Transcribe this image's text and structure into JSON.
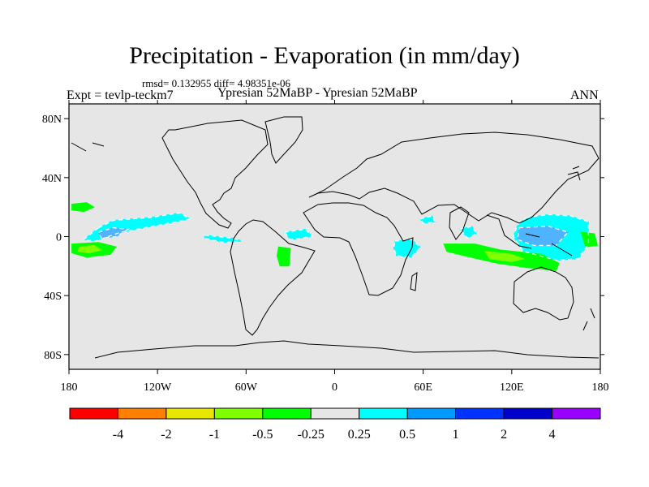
{
  "title": "Precipitation - Evaporation (in mm/day)",
  "stats": "rmsd= 0.132955 diff= 4.98351e-06",
  "expt_label": "Expt = tevlp-teckm7",
  "comparison_label": "Ypresian  52MaBP - Ypresian  52MaBP",
  "season": "ANN",
  "map": {
    "projection": "cylindrical-equidistant",
    "lon_range": [
      -180,
      180
    ],
    "lat_range": [
      -90,
      90
    ],
    "ocean_color": "#e6e6e6",
    "coastline_color": "#000000",
    "x_ticks": [
      {
        "value": -180,
        "label": "180"
      },
      {
        "value": -120,
        "label": "120W"
      },
      {
        "value": -60,
        "label": "60W"
      },
      {
        "value": 0,
        "label": "0"
      },
      {
        "value": 60,
        "label": "60E"
      },
      {
        "value": 120,
        "label": "120E"
      },
      {
        "value": 180,
        "label": "180"
      }
    ],
    "y_ticks": [
      {
        "value": 80,
        "label": "80N"
      },
      {
        "value": 40,
        "label": "40N"
      },
      {
        "value": 0,
        "label": "0"
      },
      {
        "value": -40,
        "label": "40S"
      },
      {
        "value": -80,
        "label": "80S"
      }
    ]
  },
  "colorbar": {
    "boundaries": [
      "-4",
      "-2",
      "-1",
      "-0.5",
      "-0.25",
      "0.25",
      "0.5",
      "1",
      "2",
      "4"
    ],
    "colors": [
      "#ff0000",
      "#ff8000",
      "#e6e600",
      "#80ff00",
      "#00ff00",
      "#e6e6e6",
      "#00ffff",
      "#0099ff",
      "#0033ff",
      "#0000cc",
      "#9900ff"
    ]
  },
  "anomaly_regions": [
    {
      "name": "central-pacific-moist-band",
      "class": "0.25 to 0.5",
      "color": "#00ffff",
      "polygon": [
        [
          -160,
          6
        ],
        [
          -150,
          11
        ],
        [
          -125,
          13
        ],
        [
          -105,
          16
        ],
        [
          -98,
          12
        ],
        [
          -118,
          8
        ],
        [
          -145,
          3
        ],
        [
          -162,
          -3
        ],
        [
          -170,
          -2
        ]
      ]
    },
    {
      "name": "central-pacific-core",
      "class": "0.5 to 1",
      "color": "#4fb3ff",
      "polygon": [
        [
          -160,
          3
        ],
        [
          -150,
          6
        ],
        [
          -140,
          5
        ],
        [
          -148,
          0
        ],
        [
          -158,
          -1
        ]
      ]
    },
    {
      "name": "equatorial-pacific-east",
      "class": "0.25 to 0.5",
      "color": "#00ffff",
      "polygon": [
        [
          -88,
          1
        ],
        [
          -70,
          -1
        ],
        [
          -62,
          -3
        ],
        [
          -75,
          -4
        ],
        [
          -88,
          -1
        ]
      ]
    },
    {
      "name": "west-pacific-moist-region",
      "class": "0.25 to 0.5",
      "color": "#00ffff",
      "polygon": [
        [
          130,
          13
        ],
        [
          145,
          15
        ],
        [
          160,
          14
        ],
        [
          172,
          10
        ],
        [
          172,
          -5
        ],
        [
          165,
          -15
        ],
        [
          150,
          -16
        ],
        [
          128,
          -10
        ],
        [
          121,
          0
        ],
        [
          124,
          8
        ]
      ]
    },
    {
      "name": "west-pacific-core",
      "class": "0.5 to 1",
      "color": "#4fb3ff",
      "polygon": [
        [
          125,
          6
        ],
        [
          145,
          7
        ],
        [
          158,
          3
        ],
        [
          150,
          -6
        ],
        [
          135,
          -6
        ],
        [
          124,
          -2
        ]
      ]
    },
    {
      "name": "indian-ocean-moist-patch",
      "class": "0.25 to 0.5",
      "color": "#00ffff",
      "polygon": [
        [
          41,
          -3
        ],
        [
          52,
          -2
        ],
        [
          58,
          -7
        ],
        [
          52,
          -14
        ],
        [
          42,
          -13
        ],
        [
          40,
          -8
        ]
      ]
    },
    {
      "name": "bay-of-bengal-patch",
      "class": "0.25 to 0.5",
      "color": "#00ffff",
      "polygon": [
        [
          85,
          5
        ],
        [
          93,
          7
        ],
        [
          96,
          2
        ],
        [
          90,
          -1
        ]
      ]
    },
    {
      "name": "arabian-sea-patch",
      "class": "0.25 to 0.5",
      "color": "#00ffff",
      "polygon": [
        [
          58,
          12
        ],
        [
          66,
          14
        ],
        [
          68,
          10
        ],
        [
          60,
          9
        ]
      ]
    },
    {
      "name": "atlantic-moist-patch",
      "class": "0.25 to 0.5",
      "color": "#00ffff",
      "polygon": [
        [
          -34,
          3
        ],
        [
          -20,
          5
        ],
        [
          -15,
          0
        ],
        0,
        [
          -30,
          -2
        ]
      ]
    },
    {
      "name": "north-pacific-dry-patch",
      "class": "-0.5 to -0.25",
      "color": "#00ff00",
      "polygon": [
        [
          -178,
          22
        ],
        [
          -168,
          23
        ],
        [
          -163,
          20
        ],
        [
          -170,
          17
        ],
        [
          -178,
          18
        ]
      ]
    },
    {
      "name": "south-pacific-dry-band",
      "class": "-0.5 to -0.25",
      "color": "#00ff00",
      "polygon": [
        [
          -178,
          -5
        ],
        [
          -160,
          -4
        ],
        [
          -148,
          -7
        ],
        [
          -152,
          -12
        ],
        [
          -168,
          -14
        ],
        [
          -178,
          -11
        ]
      ]
    },
    {
      "name": "south-pacific-dry-core",
      "class": "-1 to -0.5",
      "color": "#80ff00",
      "polygon": [
        [
          -173,
          -7
        ],
        [
          -163,
          -6
        ],
        [
          -158,
          -9
        ],
        [
          -166,
          -11
        ],
        [
          -174,
          -10
        ]
      ]
    },
    {
      "name": "brazil-dry-patch",
      "class": "-0.5 to -0.25",
      "color": "#00ff00",
      "polygon": [
        [
          -38,
          -7
        ],
        [
          -30,
          -8
        ],
        [
          -31,
          -20
        ],
        [
          -37,
          -20
        ],
        [
          -39,
          -13
        ]
      ]
    },
    {
      "name": "indian-ocean-dry-band",
      "class": "-0.5 to -0.25",
      "color": "#00ff00",
      "polygon": [
        [
          74,
          -5
        ],
        [
          95,
          -5
        ],
        [
          112,
          -9
        ],
        [
          140,
          -12
        ],
        [
          152,
          -18
        ],
        [
          150,
          -23
        ],
        [
          130,
          -21
        ],
        [
          110,
          -18
        ],
        [
          88,
          -13
        ],
        [
          76,
          -10
        ]
      ]
    },
    {
      "name": "indian-ocean-dry-core",
      "class": "-1 to -0.5",
      "color": "#80ff00",
      "polygon": [
        [
          102,
          -10
        ],
        [
          120,
          -12
        ],
        [
          128,
          -15
        ],
        [
          120,
          -17
        ],
        [
          105,
          -15
        ]
      ]
    },
    {
      "name": "east-of-dateline-dry-patch",
      "class": "-0.5 to -0.25",
      "color": "#00ff00",
      "polygon": [
        [
          167,
          3
        ],
        [
          176,
          2
        ],
        [
          178,
          -6
        ],
        [
          170,
          -7
        ]
      ]
    }
  ]
}
